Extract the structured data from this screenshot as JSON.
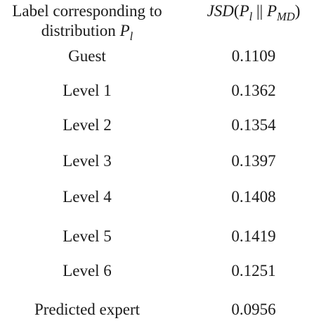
{
  "header": {
    "label_col_line1": "Label corresponding to",
    "label_col_line2_text": "distribution",
    "label_col_line2_var": "P",
    "label_col_line2_sub": "l",
    "value_col_fn": "JSD",
    "value_col_open": "(",
    "value_col_p1": "P",
    "value_col_p1_sub": "l",
    "value_col_sep": " || ",
    "value_col_p2": "P",
    "value_col_p2_sub": "MD",
    "value_col_close": ")"
  },
  "rows": [
    {
      "label": "Guest",
      "value": "0.1109"
    },
    {
      "label": "Level 1",
      "value": "0.1362"
    },
    {
      "label": "Level 2",
      "value": "0.1354"
    },
    {
      "label": "Level 3",
      "value": "0.1397"
    },
    {
      "label": "Level 4",
      "value": "0.1408"
    },
    {
      "label": "Level 5",
      "value": "0.1419"
    },
    {
      "label": "Level 6",
      "value": "0.1251"
    },
    {
      "label": "Predicted expert",
      "value": "0.0956"
    }
  ]
}
